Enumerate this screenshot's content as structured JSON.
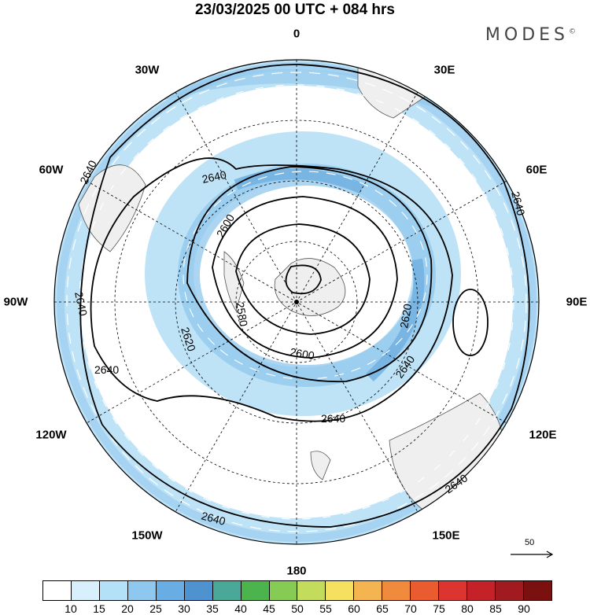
{
  "header": {
    "title": "23/03/2025  00 UTC  + 084 hrs",
    "brand": "MODES",
    "brand_mark": "©"
  },
  "map": {
    "projection": "south-polar-stereographic",
    "longitude_labels": {
      "top": "0",
      "top_right": "30E",
      "right_upper": "60E",
      "right": "90E",
      "right_lower": "120E",
      "bottom_right": "150E",
      "bottom": "180",
      "bottom_left": "150W",
      "left_lower": "120W",
      "left": "90W",
      "left_upper": "60W",
      "top_left": "30W"
    },
    "contour_labels": [
      "2640",
      "2640",
      "2640",
      "2600",
      "2580",
      "2620",
      "2620",
      "2600",
      "2640",
      "2640",
      "2640",
      "2640",
      "2640"
    ],
    "reference_vector_label": "50",
    "colors": {
      "ocean": "#ffffff",
      "land": "#efefef",
      "ring": "#bfe3f6",
      "strong": "#8fc7ec",
      "jet": "#6fafe0"
    }
  },
  "colorbar": {
    "ticks": [
      "10",
      "15",
      "20",
      "25",
      "30",
      "35",
      "40",
      "45",
      "50",
      "55",
      "60",
      "65",
      "70",
      "75",
      "80",
      "85",
      "90"
    ],
    "colors": [
      "#ffffff",
      "#d8f0fc",
      "#b4e0f8",
      "#8ec8ee",
      "#68aee4",
      "#4e92d0",
      "#4aa898",
      "#4cb44c",
      "#86cc54",
      "#c4dc5c",
      "#f6e060",
      "#f4b450",
      "#f08a3c",
      "#ea5c30",
      "#dc3430",
      "#c42228",
      "#a01a20",
      "#7a1010"
    ]
  }
}
